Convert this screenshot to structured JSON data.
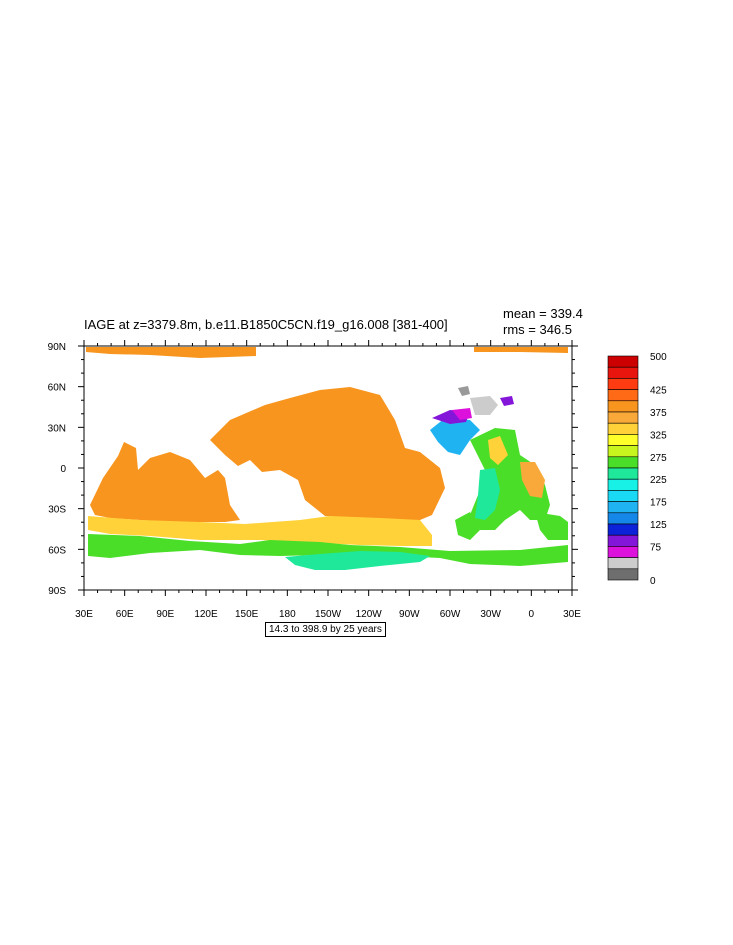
{
  "title": "IAGE at z=3379.8m, b.e11.B1850C5CN.f19_g16.008 [381-400]",
  "stats": {
    "mean": "mean = 339.4",
    "rms": "rms = 346.5"
  },
  "info_box": "14.3 to 398.9 by 25 years",
  "lat_labels": [
    "90N",
    "60N",
    "30N",
    "0",
    "30S",
    "60S",
    "90S"
  ],
  "lon_labels": [
    "30E",
    "60E",
    "90E",
    "120E",
    "150E",
    "180",
    "150W",
    "120W",
    "90W",
    "60W",
    "30W",
    "0",
    "30E"
  ],
  "colorbar": {
    "labels": [
      "500",
      "425",
      "375",
      "325",
      "275",
      "225",
      "175",
      "125",
      "75",
      "0"
    ],
    "colors_top_to_bottom": [
      "#cc0000",
      "#e8140e",
      "#ff3b12",
      "#ff6a16",
      "#f7951f",
      "#f9a93a",
      "#ffd23a",
      "#ffff2a",
      "#c8f51e",
      "#4ade29",
      "#1fe89a",
      "#18f2e6",
      "#1ad9f5",
      "#1fb3f2",
      "#1487e8",
      "#0b22d9",
      "#8416d9",
      "#dc12dc",
      "#cccccc",
      "#6e6e6e"
    ]
  },
  "colors": {
    "land": "#ffffff",
    "ocean_high_age": "#f7951f",
    "ocean_mid": "#ffd23a",
    "ocean_young": "#4ade29",
    "ocean_very_young": "#1fe89a",
    "missing": "#cccccc"
  }
}
